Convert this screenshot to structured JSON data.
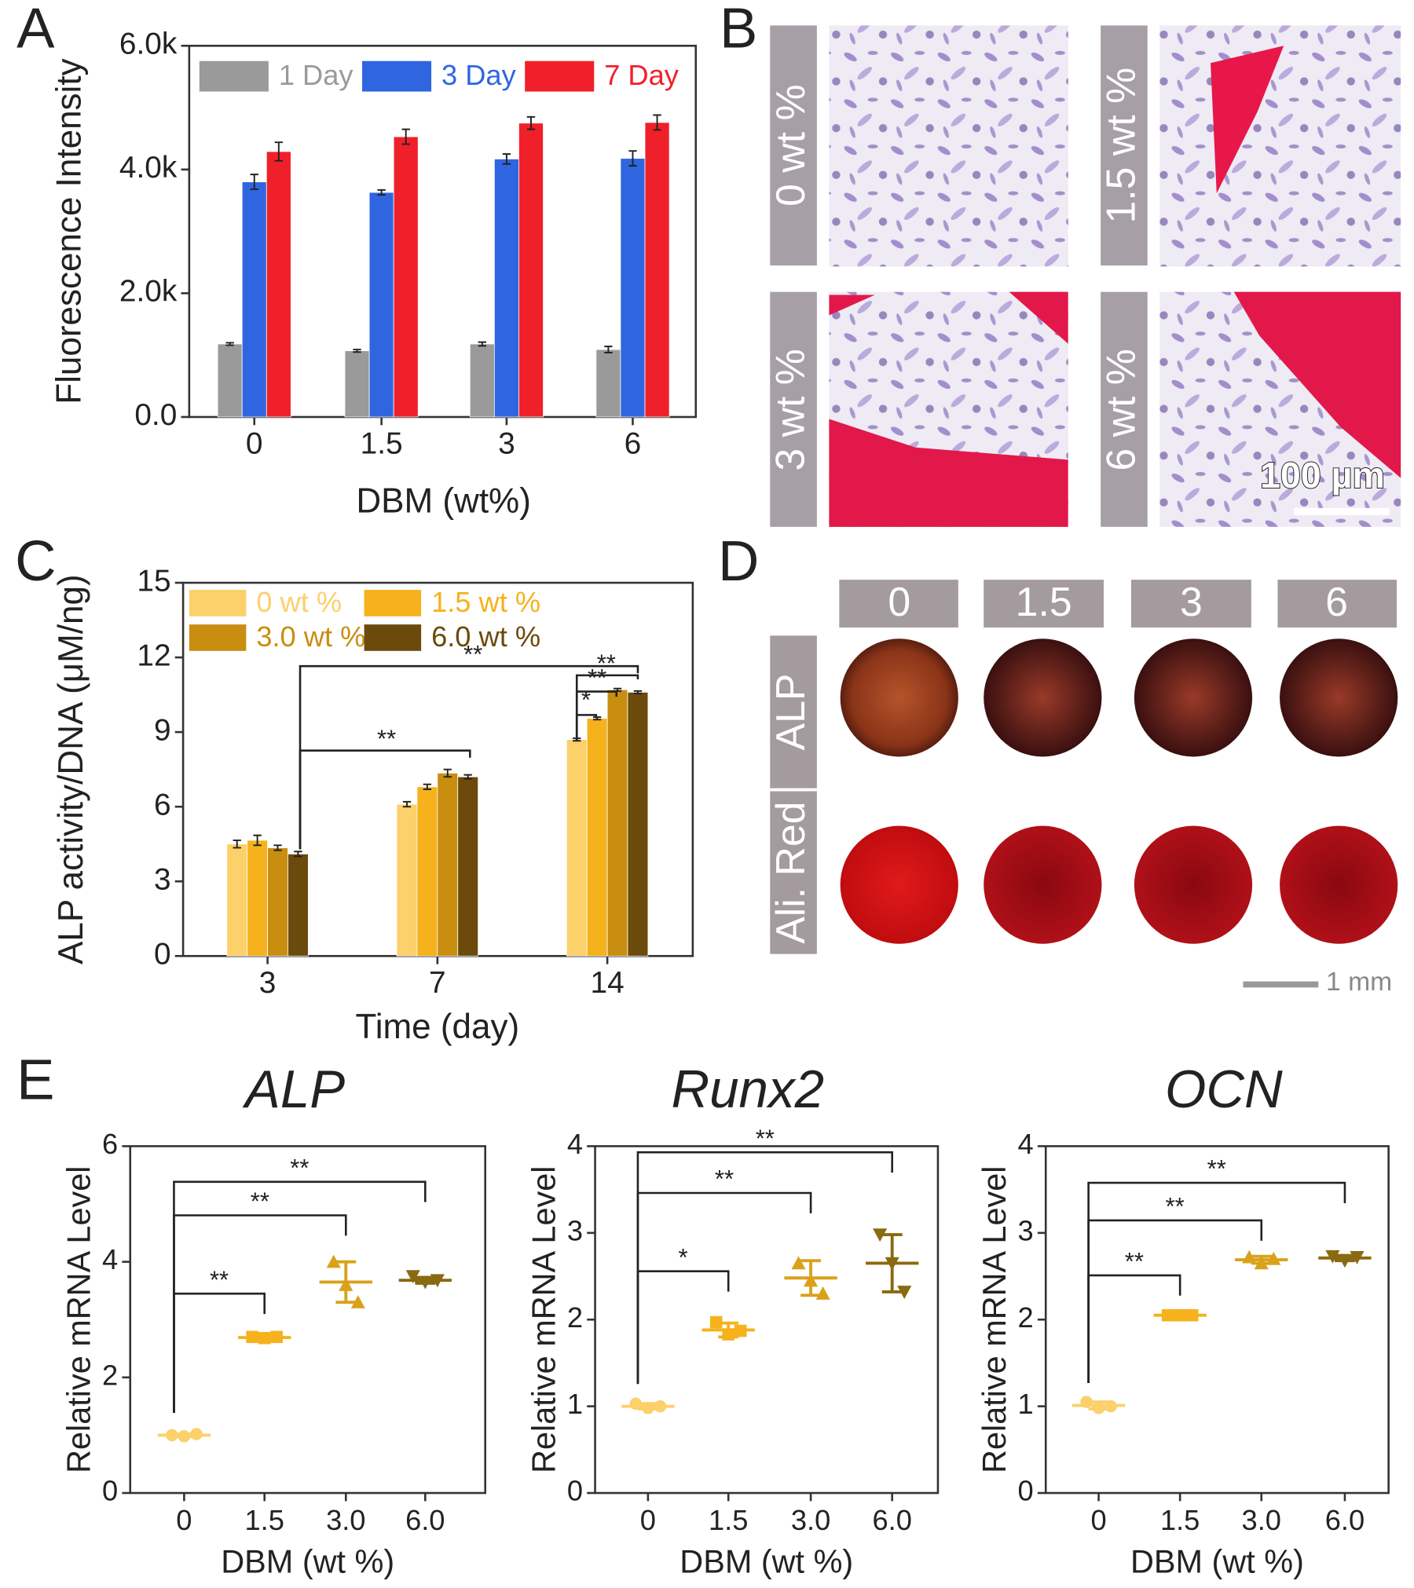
{
  "panel_labels": [
    "A",
    "B",
    "C",
    "D",
    "E"
  ],
  "chart_data": [
    {
      "type": "bar",
      "xlabel": "DBM (wt%)",
      "ylabel": "Fluorescence Intensity",
      "categories": [
        "0",
        "1.5",
        "3",
        "6"
      ],
      "series": [
        {
          "name": "1 Day",
          "color": "#9a9a9a",
          "values": [
            1180,
            1070,
            1180,
            1090
          ],
          "errors": [
            20,
            20,
            30,
            50
          ]
        },
        {
          "name": "3 Day",
          "color": "#2f66e0",
          "values": [
            3800,
            3630,
            4170,
            4180
          ],
          "errors": [
            120,
            40,
            80,
            120
          ]
        },
        {
          "name": "7 Day",
          "color": "#f0202a",
          "values": [
            4290,
            4530,
            4750,
            4760
          ],
          "errors": [
            150,
            120,
            100,
            120
          ]
        }
      ],
      "ylim": [
        0,
        6000
      ],
      "yticks": [
        {
          "value": 0,
          "label": "0.0"
        },
        {
          "value": 2000,
          "label": "2.0k"
        },
        {
          "value": 4000,
          "label": "4.0k"
        },
        {
          "value": 6000,
          "label": "6.0k"
        }
      ]
    },
    {
      "type": "bar",
      "xlabel": "Time (day)",
      "ylabel": "ALP activity/DNA (μM/ng)",
      "categories": [
        "3",
        "7",
        "14"
      ],
      "series": [
        {
          "name": "0 wt %",
          "color": "#fcd06a",
          "values": [
            4.5,
            6.1,
            8.7
          ],
          "errors": [
            0.15,
            0.1,
            0.05
          ]
        },
        {
          "name": "1.5 wt %",
          "color": "#f5b21c",
          "values": [
            4.65,
            6.8,
            9.55
          ],
          "errors": [
            0.2,
            0.1,
            0.05
          ]
        },
        {
          "name": "3.0 wt %",
          "color": "#c98e10",
          "values": [
            4.35,
            7.35,
            10.7
          ],
          "errors": [
            0.1,
            0.15,
            0.05
          ]
        },
        {
          "name": "6.0 wt %",
          "color": "#6b4a0c",
          "values": [
            4.1,
            7.2,
            10.6
          ],
          "errors": [
            0.1,
            0.08,
            0.05
          ]
        }
      ],
      "ylim": [
        0,
        15
      ],
      "yticks": [
        0,
        3,
        6,
        9,
        12,
        15
      ],
      "annotations": [
        "**",
        "**",
        "*",
        "**",
        "**"
      ]
    },
    {
      "type": "dot",
      "title": "ALP",
      "xlabel": "DBM (wt %)",
      "ylabel": "Relative mRNA Level",
      "categories": [
        "0",
        "1.5",
        "3.0",
        "6.0"
      ],
      "colors": [
        "#fcd06a",
        "#f5b21c",
        "#d9a21a",
        "#8a6a10"
      ],
      "points": [
        [
          1.0,
          0.98,
          1.02
        ],
        [
          2.7,
          2.68,
          2.7
        ],
        [
          4.0,
          3.6,
          3.3
        ],
        [
          3.75,
          3.65,
          3.68
        ]
      ],
      "means": [
        1.0,
        2.69,
        3.65,
        3.68
      ],
      "errors": [
        0.02,
        0.02,
        0.35,
        0.05
      ],
      "ylim": [
        0,
        6
      ],
      "yticks": [
        0,
        2,
        4,
        6
      ],
      "annotations": [
        "**",
        "**",
        "**"
      ]
    },
    {
      "type": "dot",
      "title": "Runx2",
      "xlabel": "DBM (wt %)",
      "ylabel": "Relative mRNA Level",
      "categories": [
        "0",
        "1.5",
        "3.0",
        "6.0"
      ],
      "colors": [
        "#fcd06a",
        "#f5b21c",
        "#d9a21a",
        "#8a6a10"
      ],
      "points": [
        [
          1.03,
          0.98,
          1.0
        ],
        [
          1.97,
          1.83,
          1.87
        ],
        [
          2.65,
          2.45,
          2.3
        ],
        [
          2.98,
          2.65,
          2.32
        ]
      ],
      "means": [
        1.0,
        1.88,
        2.48,
        2.65
      ],
      "errors": [
        0.03,
        0.08,
        0.2,
        0.33
      ],
      "ylim": [
        0,
        4
      ],
      "yticks": [
        0,
        1,
        2,
        3,
        4
      ],
      "annotations": [
        "*",
        "**",
        "**"
      ]
    },
    {
      "type": "dot",
      "title": "OCN",
      "xlabel": "DBM (wt %)",
      "ylabel": "Relative mRNA Level",
      "categories": [
        "0",
        "1.5",
        "3.0",
        "6.0"
      ],
      "colors": [
        "#fcd06a",
        "#f5b21c",
        "#d9a21a",
        "#8a6a10"
      ],
      "points": [
        [
          1.05,
          0.98,
          1.0
        ],
        [
          2.05,
          2.05,
          2.05
        ],
        [
          2.72,
          2.65,
          2.7
        ],
        [
          2.73,
          2.68,
          2.72
        ]
      ],
      "means": [
        1.01,
        2.05,
        2.69,
        2.71
      ],
      "errors": [
        0.04,
        0.01,
        0.04,
        0.03
      ],
      "ylim": [
        0,
        4
      ],
      "yticks": [
        0,
        1,
        2,
        3,
        4
      ],
      "annotations": [
        "**",
        "**",
        "**"
      ]
    }
  ],
  "panel_b": {
    "labels": [
      "0 wt %",
      "1.5 wt %",
      "3 wt %",
      "6 wt %"
    ],
    "scale_bar": "100 µm"
  },
  "panel_d": {
    "columns": [
      "0",
      "1.5",
      "3",
      "6"
    ],
    "rows": [
      "ALP",
      "Ali. Red"
    ],
    "scale_bar": "1 mm"
  }
}
